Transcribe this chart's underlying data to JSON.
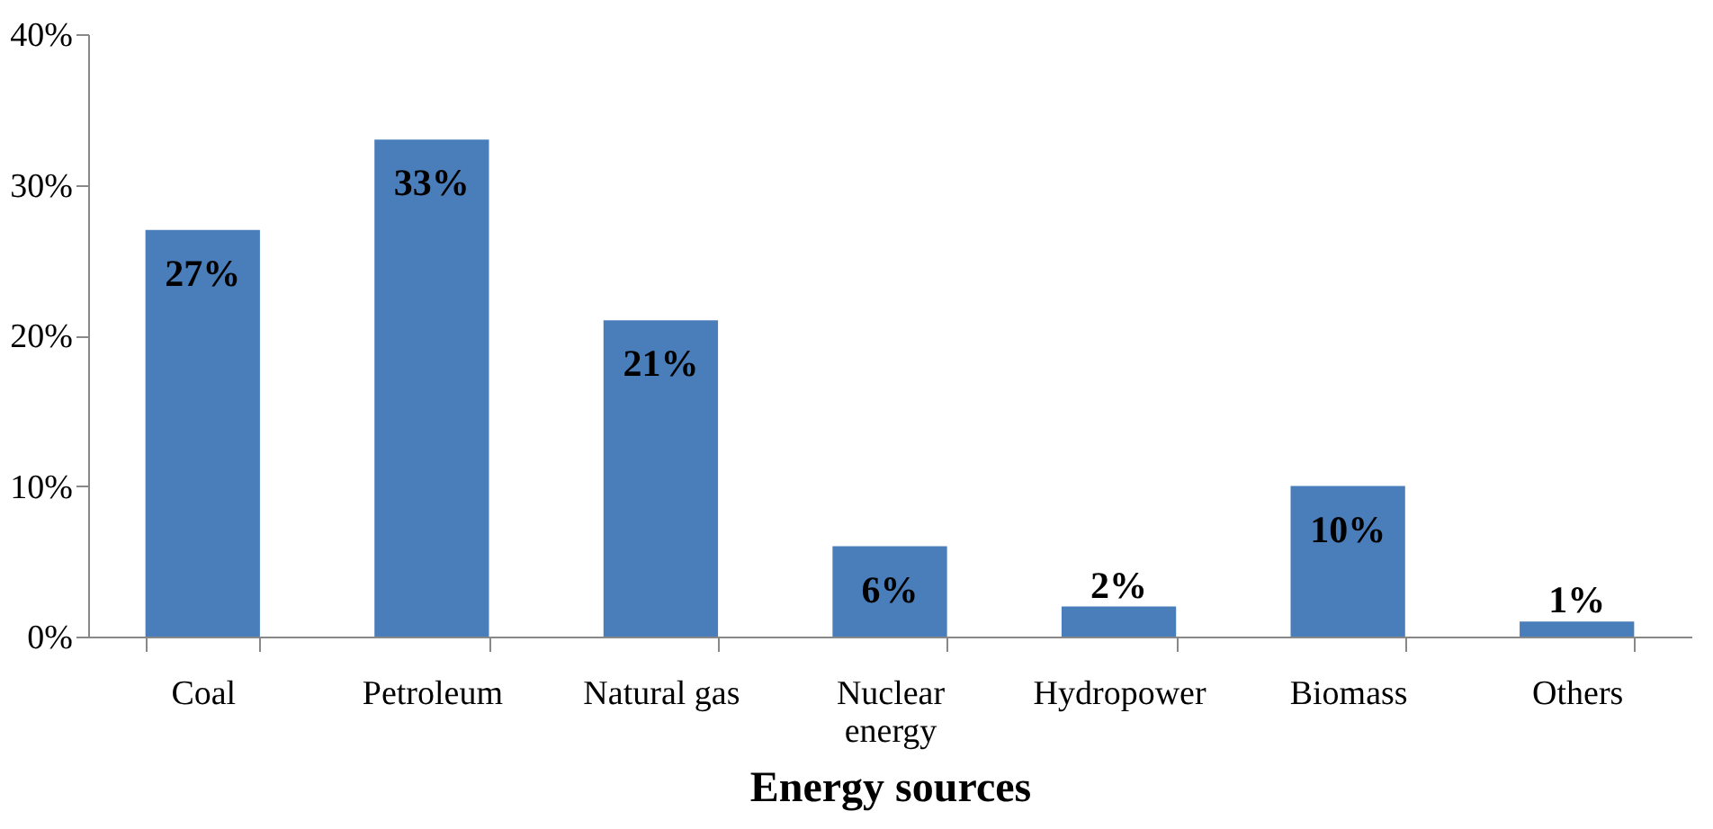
{
  "chart_data": {
    "type": "bar",
    "xlabel": "Energy sources",
    "categories": [
      "Coal",
      "Petroleum",
      "Natural gas",
      "Nuclear energy",
      "Hydropower",
      "Biomass",
      "Others"
    ],
    "values": [
      27,
      33,
      21,
      6,
      2,
      10,
      1
    ],
    "value_labels": [
      "27%",
      "33%",
      "21%",
      "6%",
      "2%",
      "10%",
      "1%"
    ],
    "color": "#4a7ebb",
    "ylim": [
      0,
      40
    ],
    "yticks": [
      {
        "value": 0,
        "label": "0%"
      },
      {
        "value": 10,
        "label": "10%"
      },
      {
        "value": 20,
        "label": "20%"
      },
      {
        "value": 30,
        "label": "30%"
      },
      {
        "value": 40,
        "label": "40%"
      }
    ],
    "grid": false
  }
}
